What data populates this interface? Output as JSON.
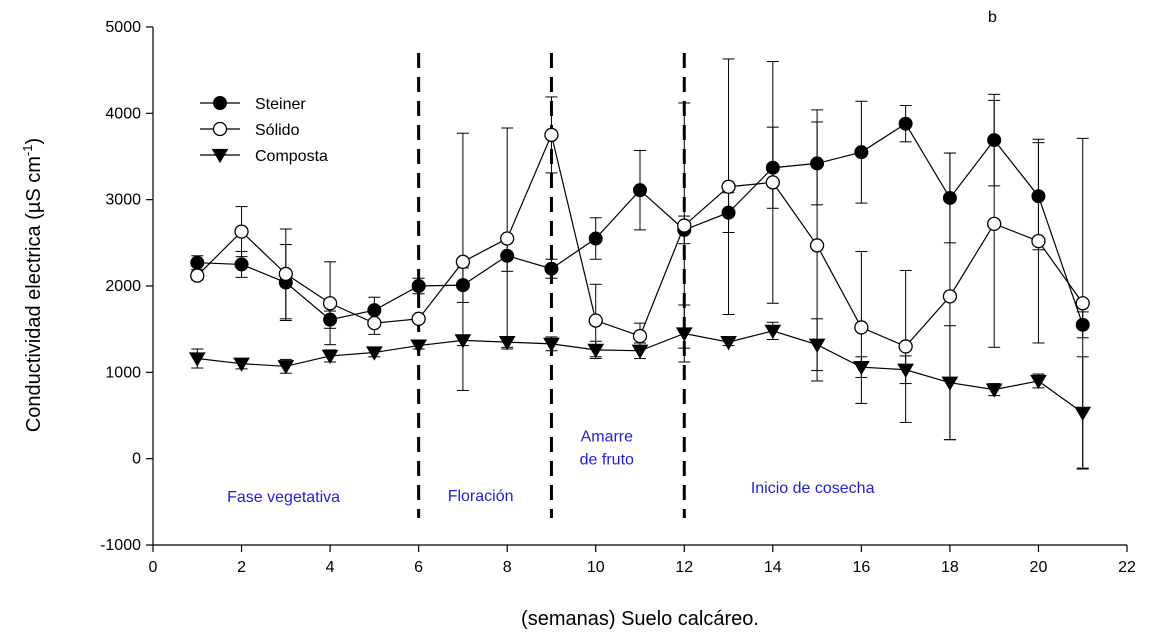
{
  "chart_data": {
    "type": "line",
    "panel_label": "b",
    "xlabel": "(semanas) Suelo calcáreo.",
    "ylabel": "Conductividad electrica (µS cm",
    "ylabel_sup": "-1",
    "ylabel_close": ")",
    "xlim": [
      0,
      22
    ],
    "ylim": [
      -1000,
      5000
    ],
    "x_ticks": [
      0,
      2,
      4,
      6,
      8,
      10,
      12,
      14,
      16,
      18,
      20,
      22
    ],
    "y_ticks": [
      -1000,
      0,
      1000,
      2000,
      3000,
      4000,
      5000
    ],
    "x": [
      1,
      2,
      3,
      4,
      5,
      6,
      7,
      8,
      9,
      10,
      11,
      12,
      13,
      14,
      15,
      16,
      17,
      18,
      19,
      20,
      21
    ],
    "series": [
      {
        "name": "Steiner",
        "marker": "filled-circle",
        "values": [
          2270,
          2250,
          2040,
          1610,
          1720,
          2000,
          2010,
          2350,
          2200,
          2550,
          3110,
          2650,
          2850,
          3370,
          3420,
          3550,
          3880,
          3020,
          3690,
          3040,
          1550
        ],
        "errors": [
          80,
          150,
          440,
          100,
          150,
          90,
          200,
          180,
          110,
          240,
          460,
          160,
          230,
          470,
          480,
          590,
          210,
          520,
          530,
          620,
          150
        ]
      },
      {
        "name": "Sólido",
        "marker": "open-circle",
        "values": [
          2120,
          2630,
          2140,
          1800,
          1570,
          1620,
          2280,
          2550,
          3750,
          1600,
          1420,
          2700,
          3150,
          3200,
          2470,
          1520,
          1300,
          1880,
          2720,
          2520,
          1800
        ],
        "errors": [
          50,
          290,
          520,
          480,
          130,
          40,
          1490,
          1280,
          440,
          420,
          150,
          1420,
          1480,
          1400,
          1570,
          880,
          880,
          1660,
          1430,
          1180,
          1910
        ]
      },
      {
        "name": "Composta",
        "marker": "filled-triangle-down",
        "values": [
          1160,
          1100,
          1070,
          1190,
          1230,
          1310,
          1370,
          1350,
          1330,
          1260,
          1250,
          1450,
          1350,
          1480,
          1320,
          1060,
          1030,
          880,
          800,
          900,
          530
        ],
        "errors": [
          110,
          60,
          80,
          70,
          50,
          40,
          60,
          60,
          80,
          100,
          90,
          330,
          40,
          100,
          300,
          120,
          160,
          660,
          70,
          80,
          650
        ]
      }
    ],
    "phase_dividers": [
      6,
      9,
      12
    ],
    "phase_labels": [
      {
        "text": "Fase vegetativa",
        "x": 2.95,
        "y": -500
      },
      {
        "text": "Floración",
        "x": 7.4,
        "y": -490
      },
      {
        "text": "Amarre",
        "x": 10.25,
        "y": 200
      },
      {
        "text": "de fruto",
        "x": 10.25,
        "y": -65
      },
      {
        "text": "Inicio de cosecha",
        "x": 14.9,
        "y": -400
      }
    ],
    "legend_position": "top-left",
    "colors": {
      "series": "#000000",
      "phase_text": "#1f1fd6",
      "dividers": "#000000"
    },
    "grid": false
  }
}
